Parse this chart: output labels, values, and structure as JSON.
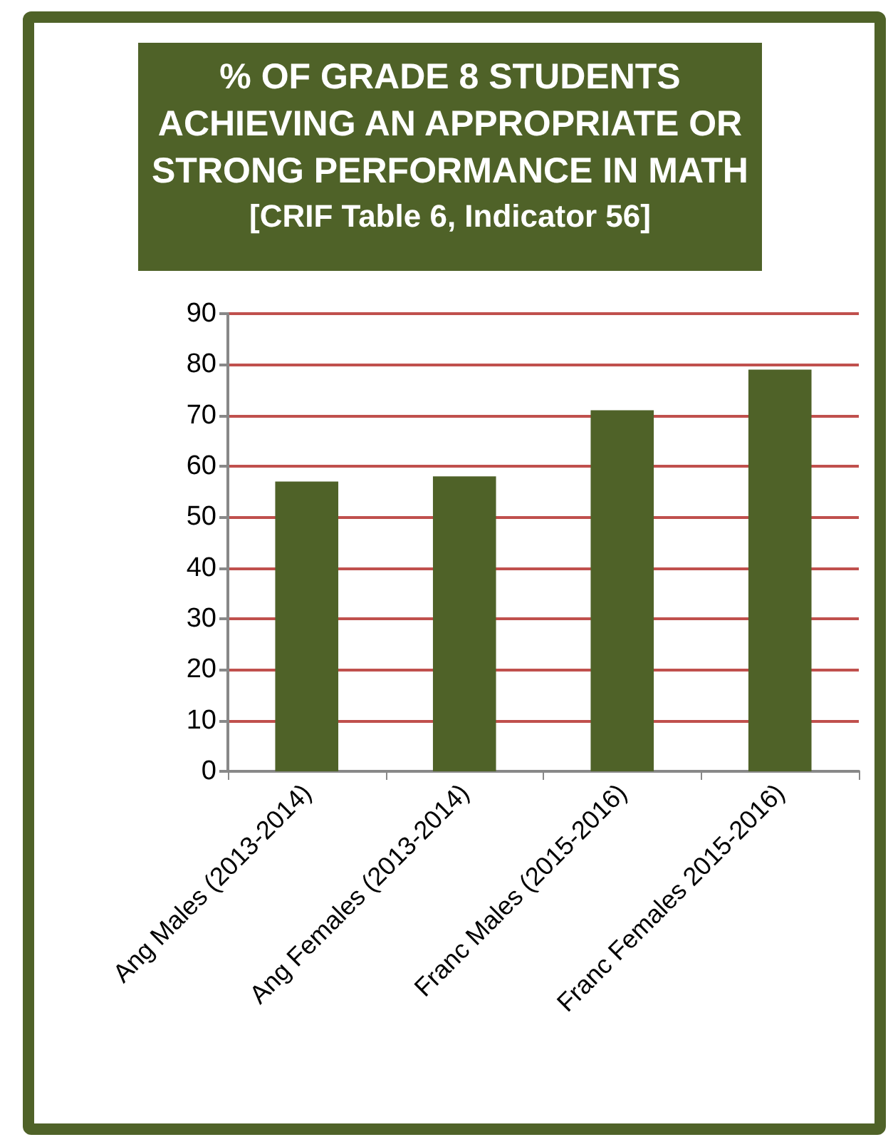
{
  "chart_data": {
    "type": "bar",
    "title": "%  OF GRADE 8 STUDENTS ACHIEVING AN APPROPRIATE OR STRONG PERFORMANCE IN MATH",
    "subtitle": "[CRIF Table 6, Indicator 56]",
    "categories": [
      "Ang Males (2013-2014)",
      "Ang Females (2013-2014)",
      "Franc Males (2015-2016)",
      "Franc Females 2015-2016)"
    ],
    "values": [
      57,
      58,
      71,
      79
    ],
    "color": "#4f6228",
    "ylim": [
      0,
      90
    ],
    "yticks": [
      0,
      10,
      20,
      30,
      40,
      50,
      60,
      70,
      80,
      90
    ],
    "grid": "y"
  }
}
